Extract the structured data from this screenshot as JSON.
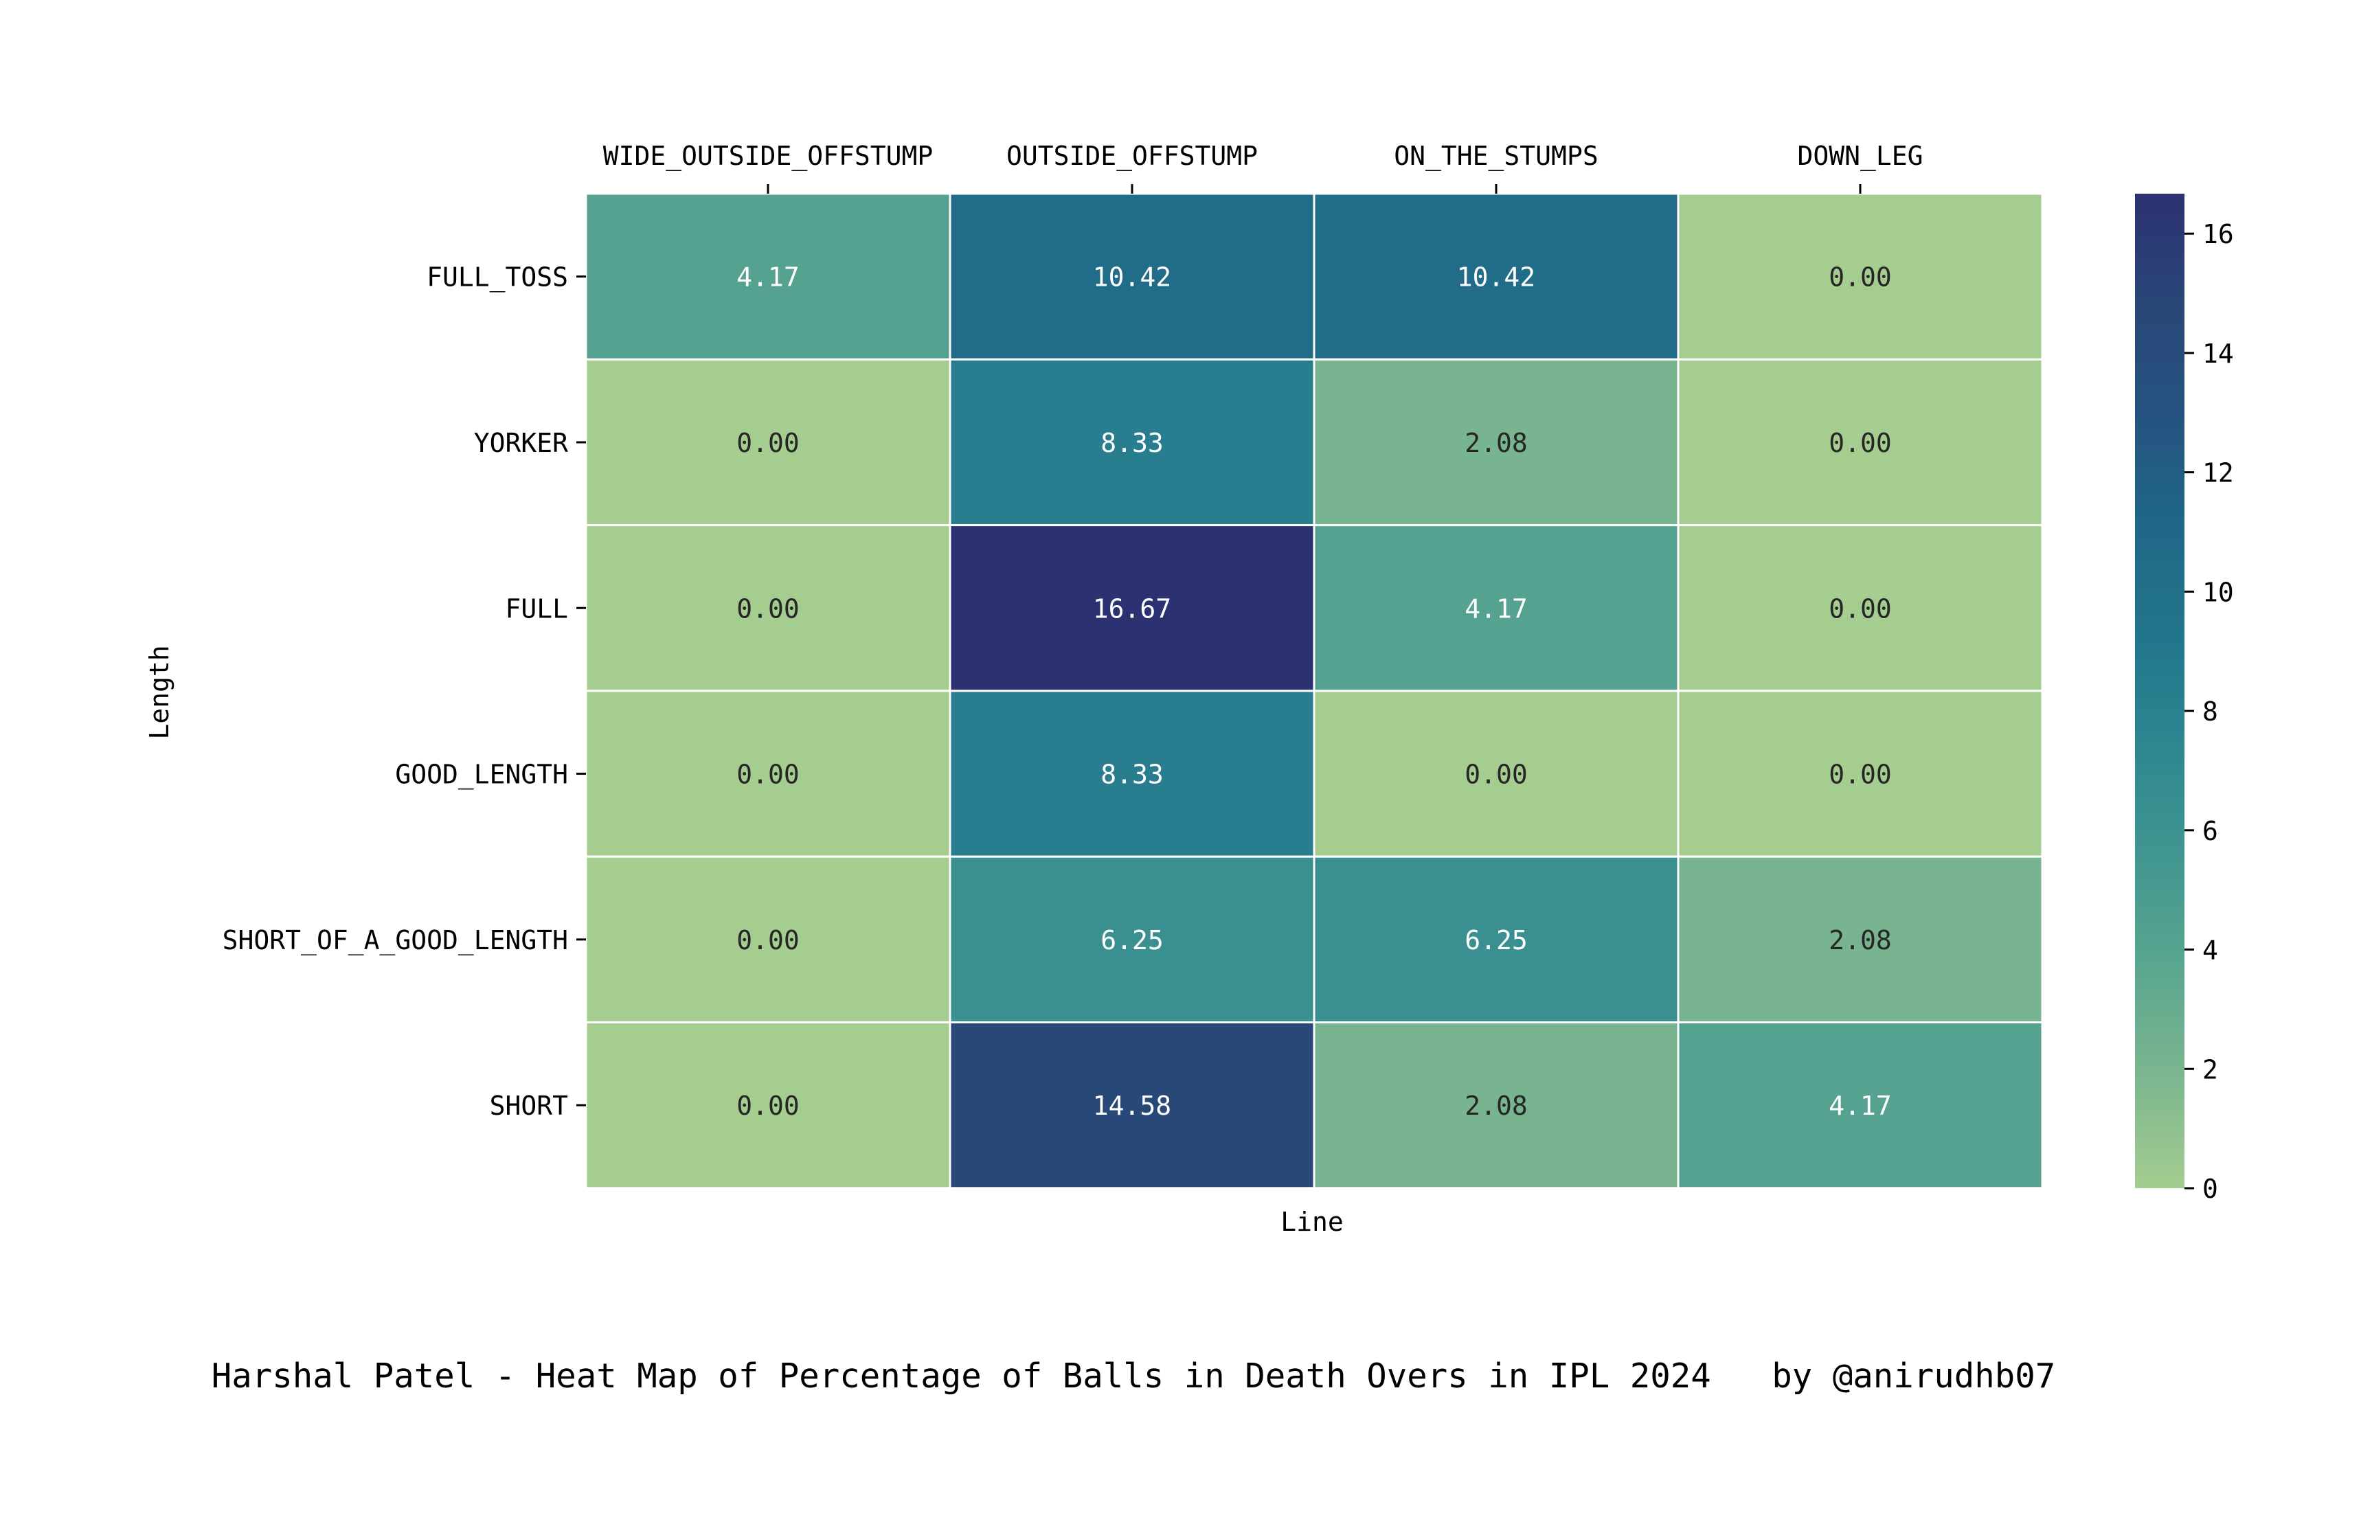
{
  "chart_data": {
    "type": "heatmap",
    "title": "Harshal Patel - Heat Map of Percentage of Balls in Death Overs in IPL 2024   by @anirudhb07",
    "xlabel": "Line",
    "ylabel": "Length",
    "columns": [
      "WIDE_OUTSIDE_OFFSTUMP",
      "OUTSIDE_OFFSTUMP",
      "ON_THE_STUMPS",
      "DOWN_LEG"
    ],
    "rows": [
      "FULL_TOSS",
      "YORKER",
      "FULL",
      "GOOD_LENGTH",
      "SHORT_OF_A_GOOD_LENGTH",
      "SHORT"
    ],
    "values": [
      [
        4.17,
        10.42,
        10.42,
        0.0
      ],
      [
        0.0,
        8.33,
        2.08,
        0.0
      ],
      [
        0.0,
        16.67,
        4.17,
        0.0
      ],
      [
        0.0,
        8.33,
        0.0,
        0.0
      ],
      [
        0.0,
        6.25,
        6.25,
        2.08
      ],
      [
        0.0,
        14.58,
        2.08,
        4.17
      ]
    ],
    "value_format": "0.00",
    "x_ticks_position": "top",
    "colorbar": {
      "position": "right",
      "ticks": [
        0,
        2,
        4,
        6,
        8,
        10,
        12,
        14,
        16
      ],
      "range": [
        0,
        16.67
      ],
      "colormap": "crest",
      "colormap_stops": [
        "#a5cd90",
        "#7cb68f",
        "#5aa68f",
        "#419690",
        "#2e8690",
        "#22758c",
        "#1f6787",
        "#255380",
        "#294677",
        "#2c3172"
      ]
    },
    "grid": false,
    "cell_border_color": "#ffffff"
  }
}
